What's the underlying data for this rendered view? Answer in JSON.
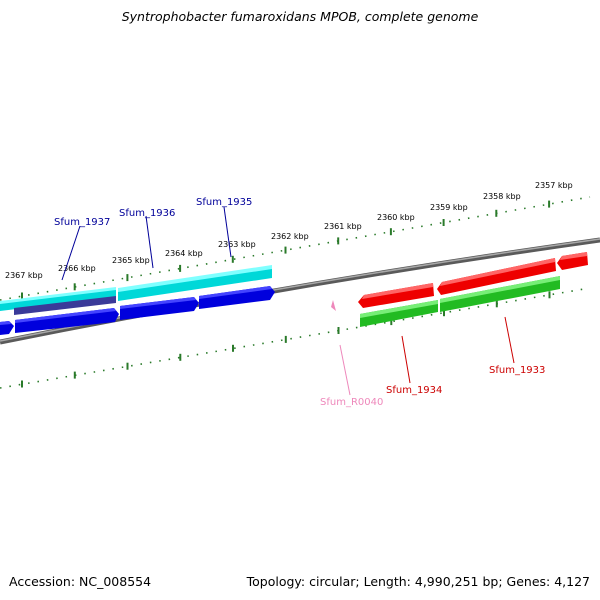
{
  "title": "Syntrophobacter fumaroxidans MPOB, complete genome",
  "footer": {
    "accession": "Accession: NC_008554",
    "summary": "Topology: circular; Length: 4,990,251 bp; Genes: 4,127"
  },
  "ruler_labels": [
    "2357 kbp",
    "2358 kbp",
    "2359 kbp",
    "2360 kbp",
    "2361 kbp",
    "2362 kbp",
    "2363 kbp",
    "2364 kbp",
    "2365 kbp",
    "2366 kbp",
    "2367 kbp"
  ],
  "gene_labels": {
    "sfum_1937": "Sfum_1937",
    "sfum_1936": "Sfum_1936",
    "sfum_1935": "Sfum_1935",
    "sfum_1934": "Sfum_1934",
    "sfum_1933": "Sfum_1933",
    "sfum_r0040": "Sfum_R0040"
  },
  "colors": {
    "blue_gene": "#0000dd",
    "cyan_gene": "#00e0e0",
    "red_gene": "#ee0000",
    "green_gene": "#22bb22",
    "pink_rna": "#ee88bb",
    "backbone": "#808080",
    "tick": "#2a7a2a",
    "label_blue": "#000099",
    "label_red": "#cc0000",
    "label_pink": "#ee88bb"
  }
}
